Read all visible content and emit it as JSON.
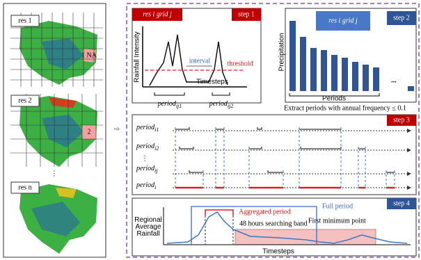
{
  "maps": {
    "labels": [
      "res 1",
      "res 2",
      "res n"
    ],
    "ellipsis": "⋮",
    "marker1": "1 NA",
    "marker2": "2"
  },
  "arrow": "⇨",
  "step1": {
    "header": "res i  grid j",
    "step": "step 1",
    "ylabel": "Rainfall Intensity",
    "interval": "interval",
    "threshold": "threshold",
    "xlabel": "Timesteps",
    "periods": [
      {
        "base": "period",
        "sub": "ij1"
      },
      {
        "base": "period",
        "sub": "ij2"
      }
    ]
  },
  "step2": {
    "header": "res i  grid j",
    "step": "step 2",
    "ylabel": "Precipitation",
    "xlabel": "Periods",
    "dots": "...",
    "caption": "Extract periods with annual frequency ≤ 0.1"
  },
  "step3": {
    "step": "step 3",
    "rows": [
      {
        "base": "period",
        "sub": "i1"
      },
      {
        "base": "period",
        "sub": "i2"
      },
      {
        "base": "period",
        "sub": "ij"
      },
      {
        "base": "period",
        "sub": "i"
      }
    ],
    "ellipsis": "⋮"
  },
  "step4": {
    "step": "step 4",
    "ylabel": [
      "Regional",
      "Average",
      "Rainfall"
    ],
    "aggregated": "Aggregated period",
    "full": "Full period",
    "band": "48 hours searching band",
    "first_min": "First minimum point",
    "xlabel": "Timesteps"
  }
}
